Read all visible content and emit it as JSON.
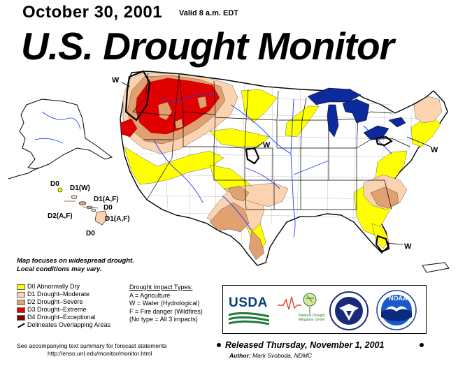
{
  "header": {
    "date": "October 30, 2001",
    "valid": "Valid 8 a.m. EDT",
    "title": "U.S. Drought Monitor"
  },
  "map": {
    "impact_labels": [
      {
        "id": "w-northwest",
        "text": "W"
      },
      {
        "id": "w-plains",
        "text": "W"
      },
      {
        "id": "w-northeast",
        "text": "W"
      },
      {
        "id": "w-florida",
        "text": "W"
      }
    ],
    "hawaii_labels": {
      "d0_top": "D0",
      "d1w": "D1(W)",
      "d1af_top": "D1(A,F)",
      "d0_mid": "D0",
      "d2af": "D2(A,F)",
      "d1af_bottom": "D1(A,F)",
      "d0_bottom": "D0"
    },
    "colors": {
      "water": "#0d2a9c",
      "river": "#1f3cff",
      "d0": "#ffff00",
      "d1": "#fcd3b0",
      "d2": "#e0a070",
      "d3": "#e00000",
      "d4": "#800000",
      "state_lines": "#000000",
      "county_lines": "#b0b0b0"
    }
  },
  "note": {
    "line1": "Map focuses on widespread drought.",
    "line2": "Local conditions may vary."
  },
  "legend": {
    "items": [
      {
        "code": "D0",
        "label": "D0 Abnormally Dry",
        "color": "#ffff00"
      },
      {
        "code": "D1",
        "label": "D1 Drought–Moderate",
        "color": "#fcd3b0"
      },
      {
        "code": "D2",
        "label": "D2 Drought–Severe",
        "color": "#e0a070"
      },
      {
        "code": "D3",
        "label": "D3 Drought–Extreme",
        "color": "#e00000"
      },
      {
        "code": "D4",
        "label": "D4 Drought–Exceptional",
        "color": "#800000"
      }
    ],
    "overlap_label": "Delineates Overlapping Areas"
  },
  "impacts": {
    "heading": "Drought Impact Types:",
    "a": "A = Agriculture",
    "w": "W = Water (Hydrological)",
    "f": "F = Fire danger (Wildfires)",
    "none": "(No type = All 3 impacts)"
  },
  "logos": {
    "usda": "USDA",
    "ndmc": "National Drought Mitigation Center",
    "noaa": "NOAA"
  },
  "footer": {
    "line1": "See accompanying text summary for forecast statements",
    "line2": "http://enso.unl.edu/monitor/monitor.html",
    "released": "Released Thursday, November 1, 2001",
    "author_label": "Author:",
    "author_name": "Mark Svoboda, NDMC"
  }
}
